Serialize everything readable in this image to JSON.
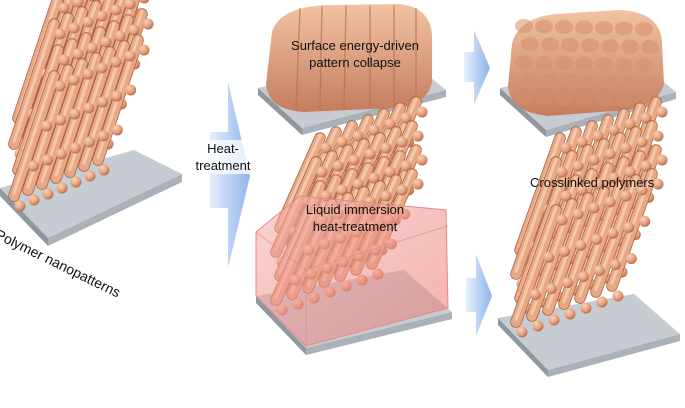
{
  "labels": {
    "source": "Polymer nanopatterns",
    "heat": "Heat-\ntreatment",
    "collapse": "Surface energy-driven\npattern collapse",
    "liquid": "Liquid immersion\nheat-treatment",
    "crosslinked": "Crosslinked polymers"
  },
  "colors": {
    "polymer": "#e8a884",
    "polymer_dark": "#b7684a",
    "substrate_top": "#c7ccd2",
    "substrate_side": "#9aa1a9",
    "arrow": "#a9c6ef",
    "liquid": "#e9746e"
  },
  "icons": {
    "arrow": "right-arrow-icon",
    "block": "polymer-block-icon",
    "substrate": "substrate-plate-icon"
  }
}
